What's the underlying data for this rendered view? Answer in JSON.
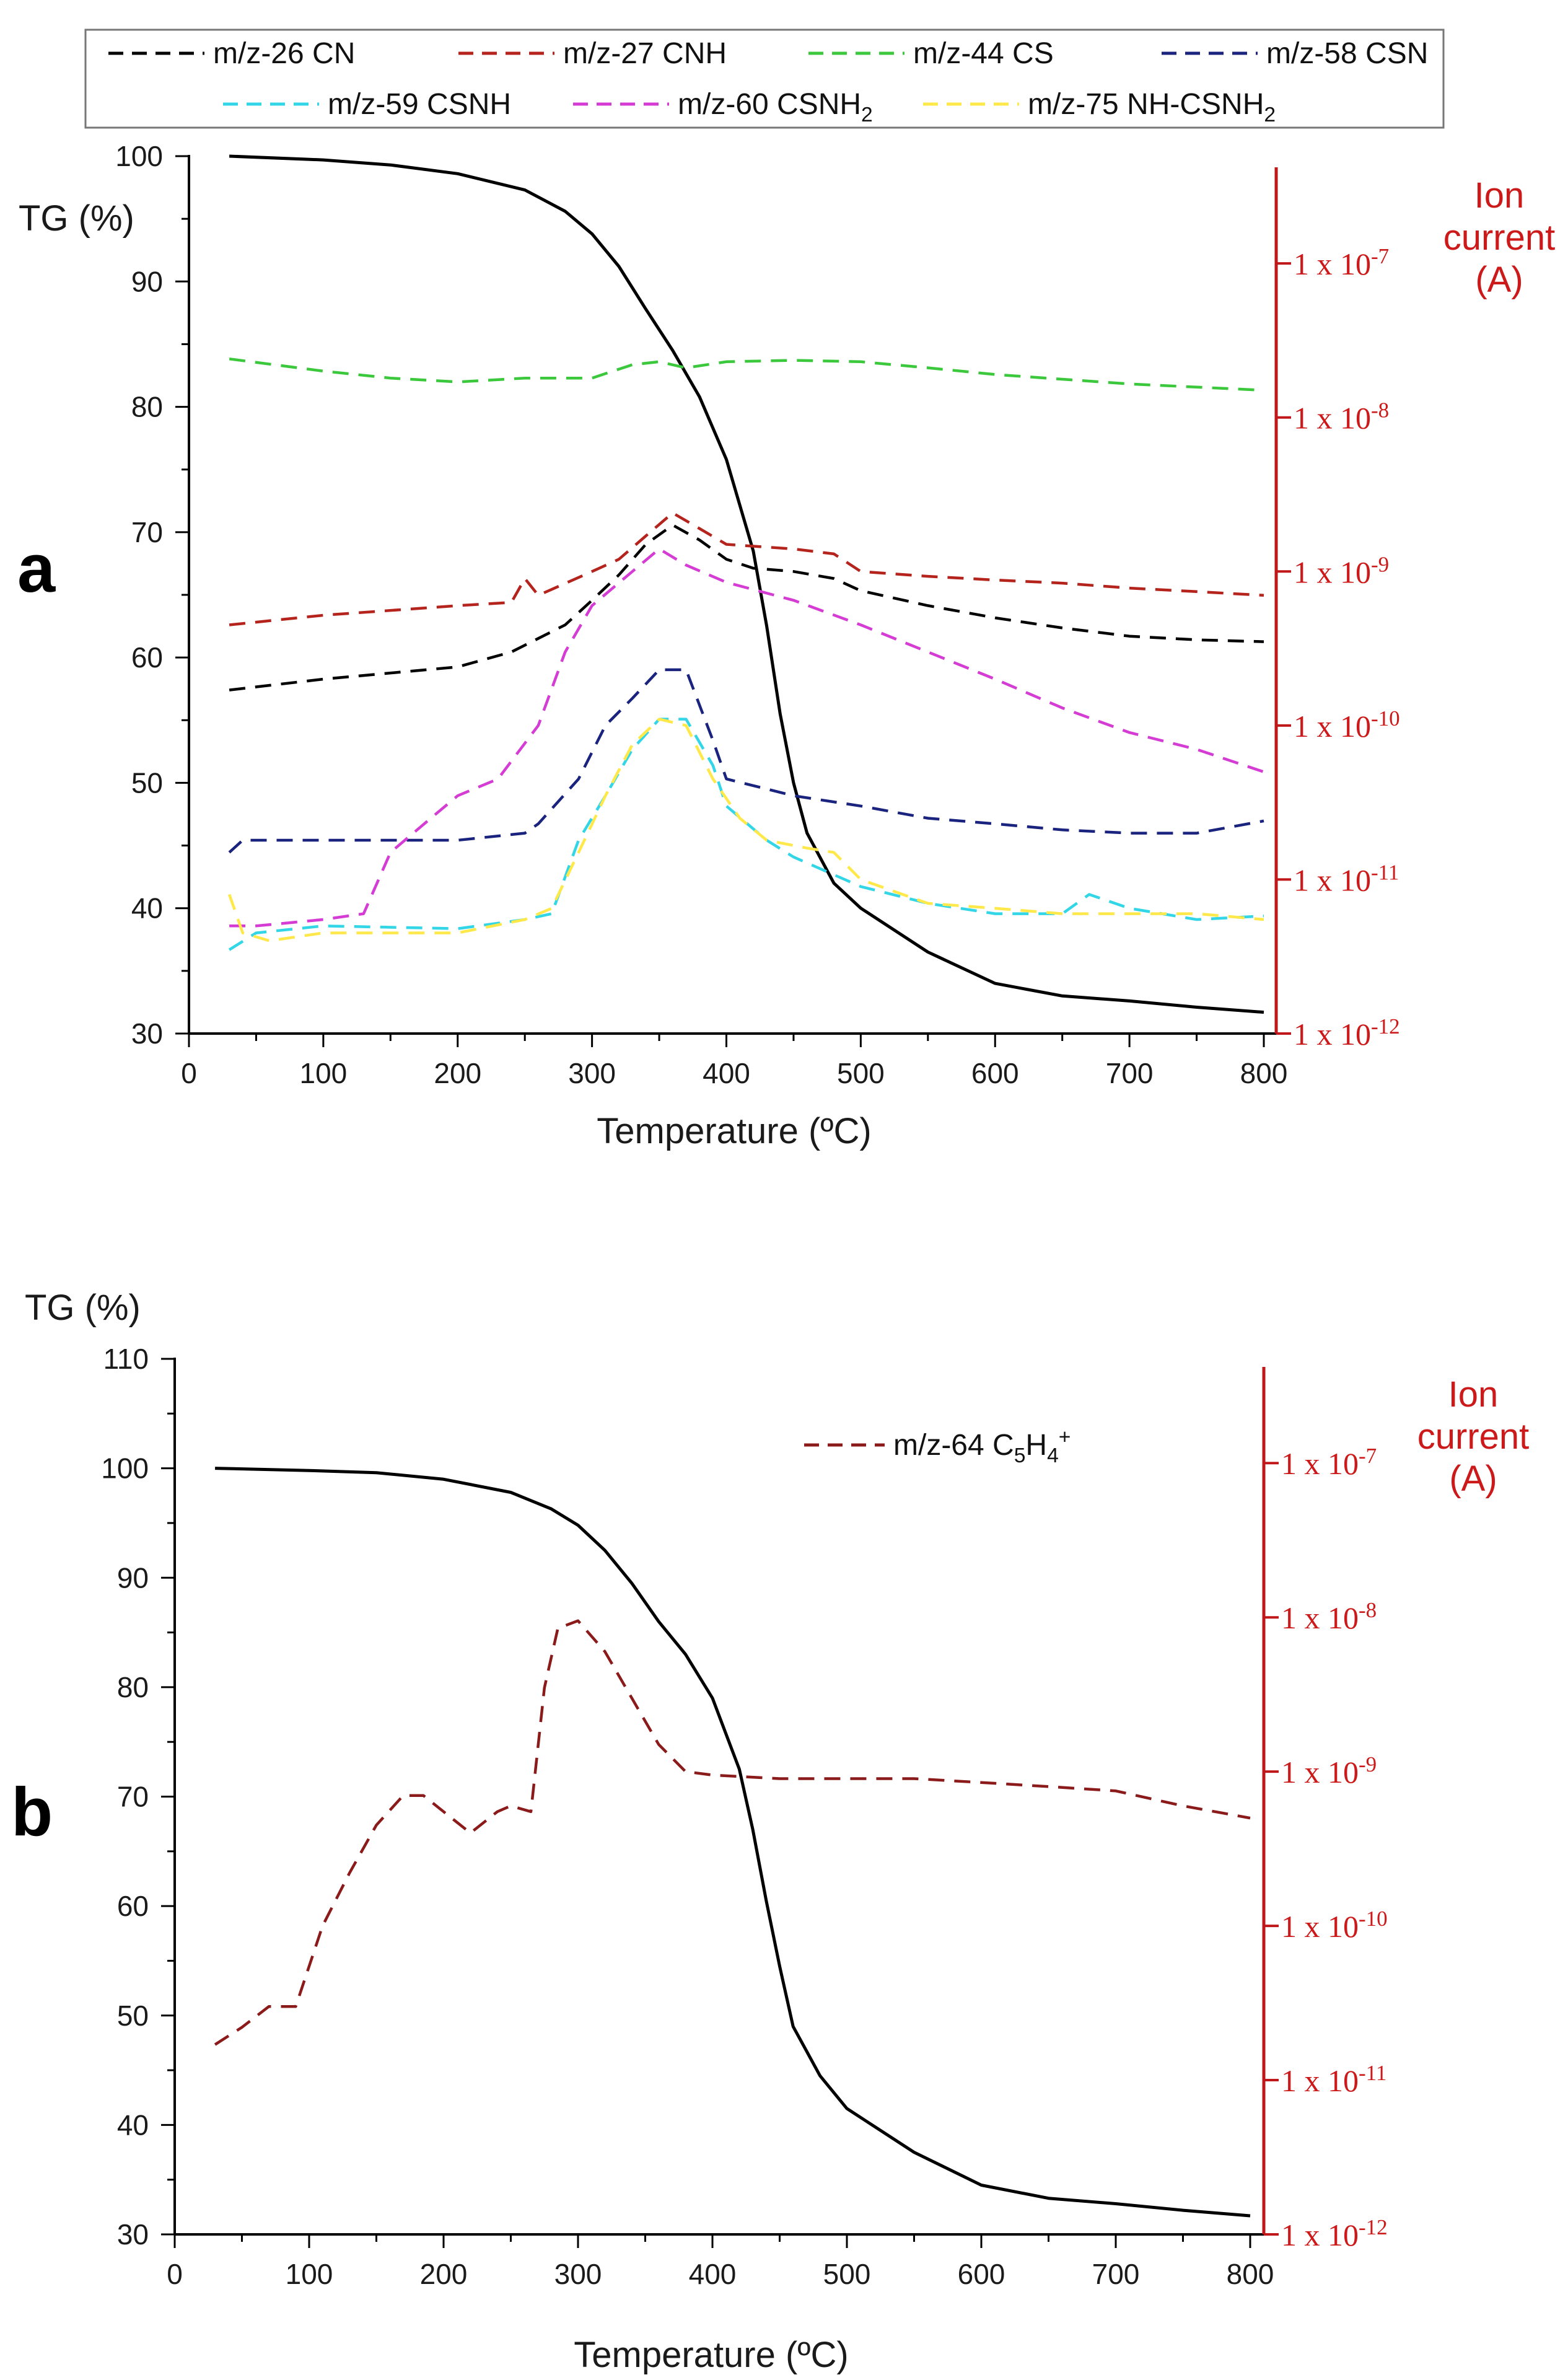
{
  "figure": {
    "panel_a_letter": "a",
    "panel_b_letter": "b"
  },
  "chart_data": [
    {
      "type": "line",
      "panel": "a",
      "xlabel": "Temperature (ºC)",
      "ylabel": "TG (%)",
      "y2label": [
        "Ion",
        "current",
        "(A)"
      ],
      "xlim": [
        0,
        800
      ],
      "ylim": [
        30,
        100
      ],
      "y2_scale": "log",
      "y2lim": [
        1e-12,
        2.2e-07
      ],
      "xticks": [
        0,
        100,
        200,
        300,
        400,
        500,
        600,
        700,
        800
      ],
      "yticks": [
        30,
        40,
        50,
        60,
        70,
        80,
        90,
        100
      ],
      "y2ticks": [
        {
          "value": 1e-12,
          "label": "1 x 10-12"
        },
        {
          "value": 1e-11,
          "label": "1 x 10-11"
        },
        {
          "value": 1e-10,
          "label": "1 x 10-10"
        },
        {
          "value": 1e-09,
          "label": "1 x 10-9"
        },
        {
          "value": 1e-08,
          "label": "1 x 10-8"
        },
        {
          "value": 1e-07,
          "label": "1 x 10-7"
        }
      ],
      "legend_position": "top",
      "series": [
        {
          "name": "TG",
          "axis": "left",
          "color": "#000000",
          "style": "solid",
          "x": [
            30,
            100,
            150,
            200,
            250,
            280,
            300,
            320,
            340,
            360,
            380,
            400,
            420,
            430,
            440,
            450,
            460,
            480,
            500,
            550,
            600,
            650,
            700,
            750,
            800
          ],
          "y": [
            100,
            99.7,
            99.3,
            98.6,
            97.3,
            95.6,
            93.8,
            91.2,
            87.8,
            84.5,
            80.8,
            75.8,
            68.5,
            62.5,
            55.5,
            50,
            46,
            42,
            40,
            36.5,
            34,
            33,
            32.6,
            32.1,
            31.7
          ]
        },
        {
          "name": "m/z-26 CN",
          "axis": "right",
          "color": "#000000",
          "style": "dashed",
          "x": [
            30,
            100,
            200,
            240,
            280,
            300,
            320,
            340,
            360,
            380,
            400,
            420,
            450,
            480,
            500,
            550,
            600,
            650,
            700,
            750,
            800
          ],
          "y": [
            1.7e-10,
            2e-10,
            2.4e-10,
            3e-10,
            4.5e-10,
            6.5e-10,
            9.5e-10,
            1.5e-09,
            2e-09,
            1.6e-09,
            1.2e-09,
            1.05e-09,
            1e-09,
            9e-10,
            7.5e-10,
            6e-10,
            5e-10,
            4.3e-10,
            3.8e-10,
            3.6e-10,
            3.5e-10
          ]
        },
        {
          "name": "m/z-27 CNH",
          "axis": "right",
          "color": "#b5231d",
          "style": "dashed",
          "x": [
            30,
            100,
            200,
            240,
            250,
            260,
            300,
            320,
            340,
            360,
            380,
            400,
            450,
            480,
            500,
            550,
            600,
            650,
            700,
            750,
            800
          ],
          "y": [
            4.5e-10,
            5.2e-10,
            6e-10,
            6.3e-10,
            9e-10,
            7e-10,
            1e-09,
            1.2e-09,
            1.7e-09,
            2.4e-09,
            1.9e-09,
            1.5e-09,
            1.4e-09,
            1.3e-09,
            1e-09,
            9.3e-10,
            8.8e-10,
            8.4e-10,
            7.8e-10,
            7.4e-10,
            7e-10
          ]
        },
        {
          "name": "m/z-44 CS",
          "axis": "right",
          "color": "#3cc83c",
          "style": "dashed",
          "x": [
            30,
            100,
            150,
            200,
            250,
            300,
            330,
            350,
            370,
            400,
            450,
            500,
            550,
            600,
            700,
            800
          ],
          "y": [
            2.4e-08,
            2e-08,
            1.8e-08,
            1.7e-08,
            1.8e-08,
            1.8e-08,
            2.2e-08,
            2.3e-08,
            2.1e-08,
            2.3e-08,
            2.35e-08,
            2.3e-08,
            2.1e-08,
            1.9e-08,
            1.65e-08,
            1.5e-08
          ]
        },
        {
          "name": "m/z-58 CSN",
          "axis": "right",
          "color": "#1a237e",
          "style": "dashed",
          "x": [
            30,
            40,
            100,
            150,
            200,
            250,
            260,
            290,
            310,
            330,
            350,
            370,
            390,
            400,
            450,
            500,
            550,
            600,
            650,
            700,
            750,
            800
          ],
          "y": [
            1.5e-11,
            1.8e-11,
            1.8e-11,
            1.8e-11,
            1.8e-11,
            2e-11,
            2.3e-11,
            4.5e-11,
            1e-10,
            1.5e-10,
            2.3e-10,
            2.3e-10,
            8e-11,
            4.5e-11,
            3.5e-11,
            3e-11,
            2.5e-11,
            2.3e-11,
            2.1e-11,
            2e-11,
            2e-11,
            2.4e-11
          ]
        },
        {
          "name": "m/z-59 CSNH",
          "axis": "right",
          "color": "#33d6e6",
          "style": "dashed",
          "x": [
            30,
            50,
            100,
            200,
            250,
            270,
            290,
            310,
            330,
            350,
            370,
            390,
            400,
            430,
            450,
            500,
            550,
            600,
            650,
            670,
            700,
            750,
            800
          ],
          "y": [
            3.5e-12,
            4.5e-12,
            5e-12,
            4.8e-12,
            5.5e-12,
            6e-12,
            1.8e-11,
            3.5e-11,
            7e-11,
            1.1e-10,
            1.1e-10,
            5.5e-11,
            3e-11,
            1.8e-11,
            1.4e-11,
            9e-12,
            7e-12,
            6e-12,
            6e-12,
            8e-12,
            6.5e-12,
            5.5e-12,
            5.8e-12
          ]
        },
        {
          "name": "m/z-60 CSNH2",
          "axis": "right",
          "color": "#d43cd4",
          "style": "dashed",
          "x": [
            30,
            50,
            100,
            130,
            150,
            180,
            200,
            230,
            260,
            280,
            300,
            330,
            350,
            370,
            400,
            450,
            500,
            550,
            600,
            650,
            700,
            750,
            800
          ],
          "y": [
            5e-12,
            5e-12,
            5.5e-12,
            6e-12,
            1.5e-11,
            2.5e-11,
            3.5e-11,
            4.5e-11,
            1e-10,
            3e-10,
            6e-10,
            1e-09,
            1.4e-09,
            1.1e-09,
            8.5e-10,
            6.5e-10,
            4.5e-10,
            3e-10,
            2e-10,
            1.3e-10,
            9e-11,
            7e-11,
            5e-11
          ]
        },
        {
          "name": "m/z-75 NH-CSNH2",
          "axis": "right",
          "color": "#ffe84a",
          "style": "dashed",
          "x": [
            30,
            40,
            60,
            100,
            200,
            250,
            270,
            290,
            310,
            330,
            350,
            370,
            390,
            410,
            430,
            460,
            480,
            500,
            550,
            600,
            650,
            700,
            750,
            800
          ],
          "y": [
            8e-12,
            4.5e-12,
            4e-12,
            4.5e-12,
            4.5e-12,
            5.5e-12,
            6.5e-12,
            1.5e-11,
            3.5e-11,
            7.5e-11,
            1.1e-10,
            1e-10,
            4.5e-11,
            2.5e-11,
            1.8e-11,
            1.6e-11,
            1.5e-11,
            1e-11,
            7e-12,
            6.5e-12,
            6e-12,
            6e-12,
            6e-12,
            5.5e-12
          ]
        }
      ]
    },
    {
      "type": "line",
      "panel": "b",
      "xlabel": "Temperature (ºC)",
      "ylabel": "TG (%)",
      "y2label": [
        "Ion",
        "current",
        "(A)"
      ],
      "xlim": [
        0,
        800
      ],
      "ylim": [
        30,
        110
      ],
      "y2_scale": "log",
      "y2lim": [
        1e-12,
        2.2e-07
      ],
      "xticks": [
        0,
        100,
        200,
        300,
        400,
        500,
        600,
        700,
        800
      ],
      "yticks": [
        30,
        40,
        50,
        60,
        70,
        80,
        90,
        100,
        110
      ],
      "y2ticks": [
        {
          "value": 1e-12,
          "label": "1 x 10-12"
        },
        {
          "value": 1e-11,
          "label": "1 x 10-11"
        },
        {
          "value": 1e-10,
          "label": "1 x 10-10"
        },
        {
          "value": 1e-09,
          "label": "1 x 10-9"
        },
        {
          "value": 1e-08,
          "label": "1 x 10-8"
        },
        {
          "value": 1e-07,
          "label": "1 x 10-7"
        }
      ],
      "legend_position": "top-right",
      "series": [
        {
          "name": "TG",
          "axis": "left",
          "color": "#000000",
          "style": "solid",
          "x": [
            30,
            100,
            150,
            200,
            250,
            280,
            300,
            320,
            340,
            360,
            380,
            400,
            420,
            430,
            440,
            450,
            460,
            480,
            500,
            550,
            600,
            650,
            700,
            750,
            800
          ],
          "y": [
            100,
            99.8,
            99.6,
            99,
            97.8,
            96.3,
            94.8,
            92.5,
            89.5,
            86,
            83,
            79,
            72.5,
            67,
            60.5,
            54.5,
            49,
            44.5,
            41.5,
            37.5,
            34.5,
            33.3,
            32.8,
            32.2,
            31.7
          ]
        },
        {
          "name": "m/z-64 C5H4+",
          "axis": "right",
          "color": "#8b1a1a",
          "style": "dashed",
          "x": [
            30,
            50,
            70,
            90,
            110,
            130,
            150,
            170,
            185,
            200,
            220,
            240,
            250,
            265,
            275,
            285,
            300,
            320,
            340,
            360,
            380,
            400,
            450,
            500,
            550,
            600,
            650,
            700,
            750,
            800
          ],
          "y": [
            1.7e-11,
            2.2e-11,
            3e-11,
            3e-11,
            1e-10,
            2.2e-10,
            4.5e-10,
            7e-10,
            7e-10,
            5.5e-10,
            4e-10,
            5.5e-10,
            6e-10,
            5.5e-10,
            3.5e-09,
            8.5e-09,
            9.5e-09,
            6e-09,
            3e-09,
            1.5e-09,
            1e-09,
            9.5e-10,
            9e-10,
            9e-10,
            9e-10,
            8.5e-10,
            8e-10,
            7.5e-10,
            6e-10,
            5e-10
          ]
        }
      ]
    }
  ]
}
